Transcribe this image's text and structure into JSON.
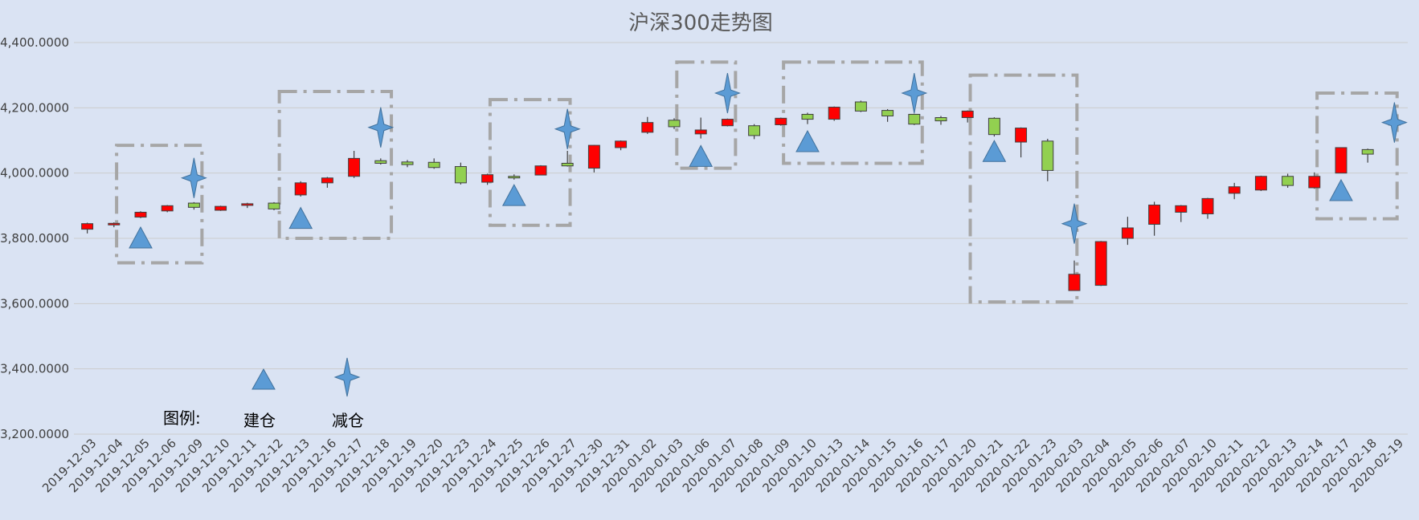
{
  "chart_data": {
    "type": "candlestick",
    "title": "沪深300走势图",
    "ylim": [
      3200,
      4400
    ],
    "y_ticks": [
      "3,200.0000",
      "3,400.0000",
      "3,600.0000",
      "3,800.0000",
      "4,000.0000",
      "4,200.0000",
      "4,400.0000"
    ],
    "grid": true,
    "colors": {
      "up": "#ff0000",
      "down": "#92d050",
      "marker": "#5b9bd5",
      "box": "#a6a6a6"
    },
    "categories": [
      "2019-12-03",
      "2019-12-04",
      "2019-12-05",
      "2019-12-06",
      "2019-12-09",
      "2019-12-10",
      "2019-12-11",
      "2019-12-12",
      "2019-12-13",
      "2019-12-16",
      "2019-12-17",
      "2019-12-18",
      "2019-12-19",
      "2019-12-20",
      "2019-12-23",
      "2019-12-24",
      "2019-12-25",
      "2019-12-26",
      "2019-12-27",
      "2019-12-30",
      "2019-12-31",
      "2020-01-02",
      "2020-01-03",
      "2020-01-06",
      "2020-01-07",
      "2020-01-08",
      "2020-01-09",
      "2020-01-10",
      "2020-01-13",
      "2020-01-14",
      "2020-01-15",
      "2020-01-16",
      "2020-01-17",
      "2020-01-20",
      "2020-01-21",
      "2020-01-22",
      "2020-01-23",
      "2020-02-03",
      "2020-02-04",
      "2020-02-05",
      "2020-02-06",
      "2020-02-07",
      "2020-02-10",
      "2020-02-11",
      "2020-02-12",
      "2020-02-13",
      "2020-02-14",
      "2020-02-17",
      "2020-02-18",
      "2020-02-19"
    ],
    "ohlc": [
      [
        3828,
        3845,
        3815,
        3848
      ],
      [
        3842,
        3846,
        3834,
        3849
      ],
      [
        3865,
        3880,
        3862,
        3883
      ],
      [
        3884,
        3900,
        3880,
        3902
      ],
      [
        3908,
        3895,
        3888,
        3911
      ],
      [
        3886,
        3898,
        3884,
        3900
      ],
      [
        3901,
        3906,
        3893,
        3909
      ],
      [
        3908,
        3890,
        3886,
        3911
      ],
      [
        3933,
        3970,
        3928,
        3975
      ],
      [
        3970,
        3985,
        3955,
        3988
      ],
      [
        3990,
        4045,
        3985,
        4068
      ],
      [
        4038,
        4030,
        4026,
        4045
      ],
      [
        4034,
        4026,
        4018,
        4040
      ],
      [
        4033,
        4017,
        4013,
        4045
      ],
      [
        4020,
        3970,
        3965,
        4032
      ],
      [
        3972,
        3995,
        3964,
        3998
      ],
      [
        3990,
        3986,
        3980,
        3996
      ],
      [
        3994,
        4022,
        3994,
        4024
      ],
      [
        4030,
        4022,
        4020,
        4068
      ],
      [
        4015,
        4085,
        4002,
        4086
      ],
      [
        4078,
        4098,
        4070,
        4100
      ],
      [
        4125,
        4155,
        4120,
        4172
      ],
      [
        4162,
        4142,
        4135,
        4168
      ],
      [
        4120,
        4132,
        4106,
        4170
      ],
      [
        4145,
        4165,
        4143,
        4167
      ],
      [
        4145,
        4115,
        4104,
        4150
      ],
      [
        4148,
        4168,
        4145,
        4170
      ],
      [
        4180,
        4165,
        4150,
        4185
      ],
      [
        4165,
        4202,
        4160,
        4204
      ],
      [
        4218,
        4190,
        4187,
        4222
      ],
      [
        4192,
        4175,
        4157,
        4196
      ],
      [
        4180,
        4150,
        4147,
        4182
      ],
      [
        4170,
        4160,
        4148,
        4175
      ],
      [
        4170,
        4190,
        4155,
        4192
      ],
      [
        4168,
        4118,
        4112,
        4171
      ],
      [
        4095,
        4138,
        4048,
        4140
      ],
      [
        4098,
        4008,
        3975,
        4105
      ],
      [
        3640,
        3690,
        3640,
        3732
      ],
      [
        3656,
        3790,
        3654,
        3792
      ],
      [
        3800,
        3832,
        3780,
        3866
      ],
      [
        3843,
        3902,
        3808,
        3912
      ],
      [
        3880,
        3900,
        3850,
        3902
      ],
      [
        3875,
        3922,
        3860,
        3924
      ],
      [
        3938,
        3958,
        3920,
        3970
      ],
      [
        3948,
        3990,
        3945,
        3992
      ],
      [
        3990,
        3962,
        3955,
        3998
      ],
      [
        3955,
        3990,
        3952,
        4002
      ],
      [
        4000,
        4078,
        4000,
        4079
      ],
      [
        4072,
        4058,
        4032,
        4075
      ],
      [
        4152,
        4152,
        4150,
        4156
      ]
    ],
    "build_markers": [
      {
        "index": 2,
        "value": 3800
      },
      {
        "index": 8,
        "value": 3860
      },
      {
        "index": 16,
        "value": 3930
      },
      {
        "index": 23,
        "value": 4050
      },
      {
        "index": 27,
        "value": 4095
      },
      {
        "index": 34,
        "value": 4065
      },
      {
        "index": 47,
        "value": 3945
      }
    ],
    "reduce_markers": [
      {
        "index": 4,
        "value": 3985
      },
      {
        "index": 11,
        "value": 4140
      },
      {
        "index": 18,
        "value": 4135
      },
      {
        "index": 24,
        "value": 4245
      },
      {
        "index": 31,
        "value": 4245
      },
      {
        "index": 37,
        "value": 3845
      },
      {
        "index": 49,
        "value": 4155
      }
    ],
    "boxes": [
      {
        "i0": 1.6,
        "i1": 4.8,
        "top": 4085,
        "bottom": 3725
      },
      {
        "i0": 7.7,
        "i1": 11.9,
        "top": 4250,
        "bottom": 3800
      },
      {
        "i0": 15.6,
        "i1": 18.6,
        "top": 4225,
        "bottom": 3840
      },
      {
        "i0": 22.6,
        "i1": 24.8,
        "top": 4340,
        "bottom": 4015
      },
      {
        "i0": 26.6,
        "i1": 31.8,
        "top": 4340,
        "bottom": 4030
      },
      {
        "i0": 33.6,
        "i1": 37.6,
        "top": 4300,
        "bottom": 3605
      },
      {
        "i0": 46.6,
        "i1": 49.6,
        "top": 4245,
        "bottom": 3860
      }
    ]
  },
  "legend": {
    "caption": "图例:",
    "build_label": "建仓",
    "reduce_label": "减仓",
    "build_icon": "blue-triangle-icon",
    "reduce_icon": "blue-four-point-star-icon"
  }
}
